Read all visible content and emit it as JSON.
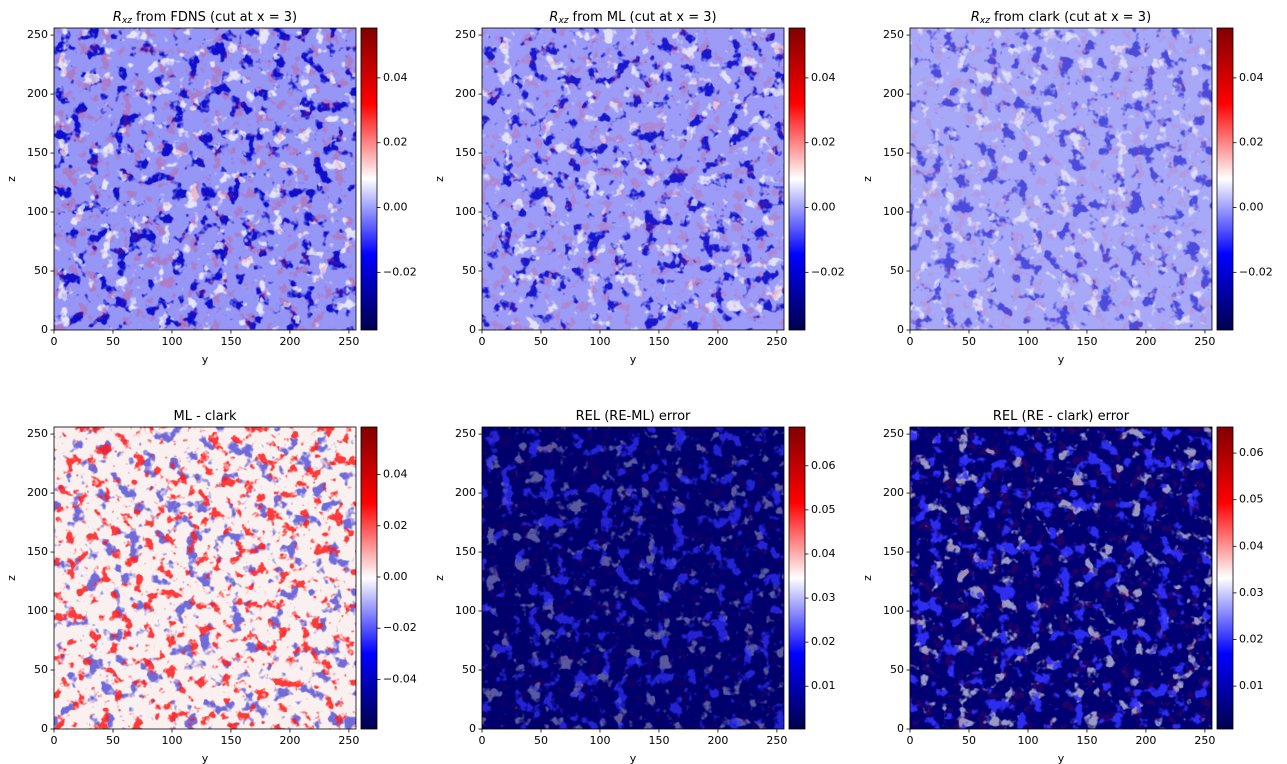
{
  "chart_data": [
    {
      "type": "heatmap",
      "title_symbol": "R",
      "title_subscript": "xz",
      "title": "from FDNS (cut at x = 3)",
      "xlabel": "y",
      "ylabel": "z",
      "xlim": [
        0,
        256
      ],
      "ylim": [
        0,
        256
      ],
      "xticks": [
        0,
        50,
        100,
        150,
        200,
        250
      ],
      "yticks": [
        0,
        50,
        100,
        150,
        200,
        250
      ],
      "color": "#9696f6",
      "colormap": "seismic",
      "clim": [
        -0.0378,
        0.0554
      ],
      "cticks": [
        {
          "value": -0.02,
          "label": "−0.02"
        },
        {
          "value": 0,
          "label": "0.00"
        },
        0.02,
        0.04
      ]
    },
    {
      "type": "heatmap",
      "title_symbol": "R",
      "title_subscript": "xz",
      "title": "from ML (cut at x = 3)",
      "xlabel": "y",
      "ylabel": "z",
      "xlim": [
        0,
        256
      ],
      "ylim": [
        0,
        256
      ],
      "xticks": [
        0,
        50,
        100,
        150,
        200,
        250
      ],
      "yticks": [
        0,
        50,
        100,
        150,
        200,
        250
      ],
      "color": "#9c9cf8",
      "colormap": "seismic",
      "clim": [
        -0.0378,
        0.0554
      ],
      "cticks": [
        {
          "value": -0.02,
          "label": "−0.02"
        },
        {
          "value": 0,
          "label": "0.00"
        },
        0.02,
        0.04
      ]
    },
    {
      "type": "heatmap",
      "title_symbol": "R",
      "title_subscript": "xz",
      "title": "from clark (cut at x = 3)",
      "xlabel": "y",
      "ylabel": "z",
      "xlim": [
        0,
        256
      ],
      "ylim": [
        0,
        256
      ],
      "xticks": [
        0,
        50,
        100,
        150,
        200,
        250
      ],
      "yticks": [
        0,
        50,
        100,
        150,
        200,
        250
      ],
      "color": "#a8a8f8",
      "colormap": "seismic",
      "clim": [
        -0.0378,
        0.0554
      ],
      "cticks": [
        {
          "value": -0.02,
          "label": "−0.02"
        },
        {
          "value": 0,
          "label": "0.00"
        },
        0.02,
        0.04
      ]
    },
    {
      "type": "heatmap",
      "title": "ML - clark",
      "xlabel": "y",
      "ylabel": "z",
      "xlim": [
        0,
        256
      ],
      "ylim": [
        0,
        256
      ],
      "xticks": [
        0,
        50,
        100,
        150,
        200,
        250
      ],
      "yticks": [
        0,
        50,
        100,
        150,
        200,
        250
      ],
      "color": "#fbf0f0",
      "colormap": "seismic",
      "clim": [
        -0.0594,
        0.0586
      ],
      "cticks": [
        {
          "value": -0.04,
          "label": "−0.04"
        },
        {
          "value": -0.02,
          "label": "−0.02"
        },
        {
          "value": 0,
          "label": "0.00"
        },
        0.02,
        0.04
      ]
    },
    {
      "type": "heatmap",
      "title": "REL (RE-ML) error",
      "xlabel": "y",
      "ylabel": "z",
      "xlim": [
        0,
        256
      ],
      "ylim": [
        0,
        256
      ],
      "xticks": [
        0,
        50,
        100,
        150,
        200,
        250
      ],
      "yticks": [
        0,
        50,
        100,
        150,
        200,
        250
      ],
      "color": "#00006c",
      "colormap": "seismic",
      "clim": [
        0.0003,
        0.0688
      ],
      "cticks": [
        0.01,
        0.02,
        0.03,
        0.04,
        0.05,
        0.06
      ]
    },
    {
      "type": "heatmap",
      "title": "REL (RE - clark) error",
      "xlabel": "y",
      "ylabel": "z",
      "xlim": [
        0,
        256
      ],
      "ylim": [
        0,
        256
      ],
      "xticks": [
        0,
        50,
        100,
        150,
        200,
        250
      ],
      "yticks": [
        0,
        50,
        100,
        150,
        200,
        250
      ],
      "color": "#000072",
      "colormap": "seismic",
      "clim": [
        0.0008,
        0.0656
      ],
      "cticks": [
        0.01,
        0.02,
        0.03,
        0.04,
        0.05,
        0.06
      ]
    }
  ]
}
